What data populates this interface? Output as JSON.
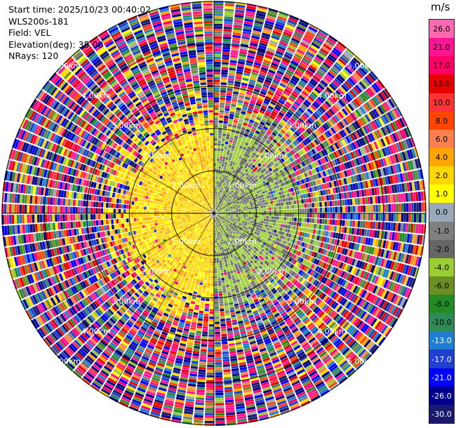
{
  "header": {
    "start_time": "Start time: 2025/10/23 00:40:02",
    "instrument": "WLS200s-181",
    "field": "Field: VEL",
    "elevation": "Elevation(deg): 35.00",
    "nrays": "NRays: 120"
  },
  "colorbar": {
    "unit": "m/s",
    "ticks": [
      "26.0",
      "21.0",
      "17.0",
      "13.0",
      "10.0",
      "8.0",
      "6.0",
      "4.0",
      "2.0",
      "1.0",
      "0.0",
      "-1.0",
      "-2.0",
      "-4.0",
      "-6.0",
      "-8.0",
      "-10.0",
      "-13.0",
      "-17.0",
      "-21.0",
      "-26.0",
      "-30.0"
    ],
    "colors": [
      "#ff69b4",
      "#ff1493",
      "#ff0066",
      "#e60000",
      "#ff3333",
      "#ff4500",
      "#ff7f50",
      "#ffa500",
      "#ffd700",
      "#ffff00",
      "#9aa8b8",
      "#7f7f7f",
      "#666666",
      "#9acd32",
      "#6b8e23",
      "#228b22",
      "#2e8b57",
      "#1e7fd0",
      "#1f3fcf",
      "#0000ff",
      "#00008b",
      "#191970"
    ]
  },
  "chart_data": {
    "type": "heatmap",
    "projection": "polar PPI",
    "field": "VEL",
    "units": "m/s",
    "elevation_deg": 35.0,
    "nrays": 120,
    "range_ring_labels": [
      "1.00km",
      "2.00km",
      "3.00km",
      "4.00km",
      "5.00km"
    ],
    "value_range": [
      -30.0,
      26.0
    ],
    "pattern": {
      "inner_clean_radius_km": 2.0,
      "west_sector_mean_velocity": 3.0,
      "east_sector_mean_velocity": -2.0,
      "outer_region": "noise (random velocities)"
    }
  }
}
